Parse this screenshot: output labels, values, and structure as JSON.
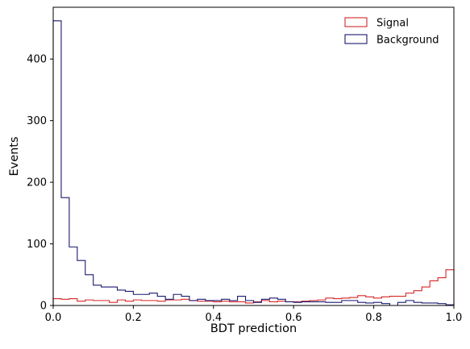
{
  "chart_data": {
    "type": "histogram",
    "xlabel": "BDT prediction",
    "ylabel": "Events",
    "xlim": [
      0,
      1
    ],
    "ylim": [
      0,
      484
    ],
    "xticks": [
      "0.0",
      "0.2",
      "0.4",
      "0.6",
      "0.8",
      "1.0"
    ],
    "yticks": [
      "0",
      "100",
      "200",
      "300",
      "400"
    ],
    "grid": false,
    "legend_position": "top-right",
    "bins": 50,
    "series": [
      {
        "name": "Signal",
        "color": "#d62728",
        "values": [
          11,
          10,
          11,
          7,
          9,
          8,
          8,
          5,
          9,
          7,
          9,
          8,
          8,
          7,
          9,
          9,
          10,
          8,
          7,
          7,
          6,
          7,
          6,
          6,
          4,
          6,
          8,
          6,
          7,
          6,
          6,
          7,
          8,
          9,
          12,
          11,
          12,
          13,
          16,
          14,
          12,
          14,
          15,
          15,
          20,
          24,
          30,
          40,
          45,
          58
        ]
      },
      {
        "name": "Background",
        "color": "#191970",
        "values": [
          462,
          175,
          95,
          73,
          50,
          33,
          30,
          30,
          25,
          23,
          18,
          18,
          20,
          15,
          10,
          18,
          15,
          8,
          10,
          8,
          8,
          10,
          8,
          15,
          8,
          5,
          10,
          12,
          10,
          6,
          5,
          6,
          6,
          6,
          5,
          5,
          8,
          8,
          5,
          4,
          5,
          3,
          0,
          5,
          8,
          5,
          4,
          4,
          3,
          1
        ]
      }
    ]
  }
}
